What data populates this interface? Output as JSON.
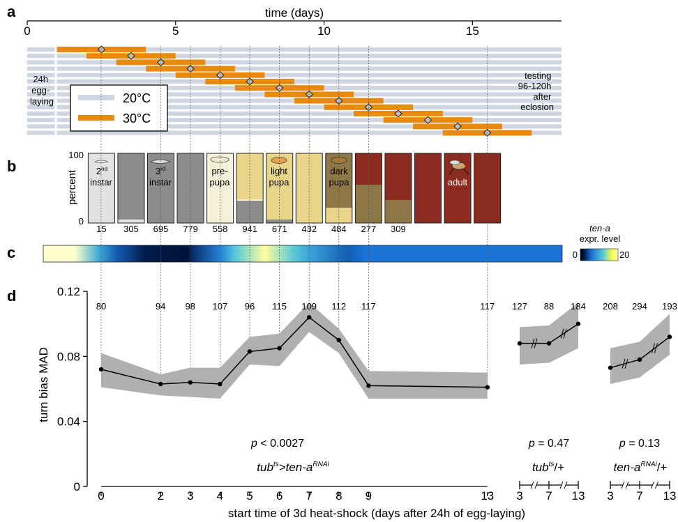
{
  "panels": {
    "a": "a",
    "b": "b",
    "c": "c",
    "d": "d"
  },
  "colors": {
    "lane": "#cfd6e2",
    "heat": "#e88a10",
    "stage_l2": "#e2e2e2",
    "stage_l3": "#8c8c8c",
    "stage_light": "#e9d58a",
    "stage_dark": "#8d7746",
    "stage_adult": "#8b2a1e",
    "ci_band": "#b0b0b0",
    "line": "#000000",
    "colormap": [
      "#ffffcc",
      "#ffff44",
      "#55c8d8",
      "#1a74d6",
      "#001a4a",
      "#000000"
    ]
  },
  "panel_a": {
    "title": "time (days)",
    "ticks": [
      0,
      5,
      10,
      15
    ],
    "x_max_days": 18,
    "egg_laying_label": [
      "24h",
      "egg-",
      "laying"
    ],
    "testing_label": [
      "testing",
      "96-120h",
      "after",
      "eclosion"
    ],
    "legend": [
      {
        "label": "20°C",
        "color": "#cfd6e2"
      },
      {
        "label": "30°C",
        "color": "#e88a10"
      }
    ],
    "heat_shocks": [
      {
        "start_day": 1,
        "end_day": 4
      },
      {
        "start_day": 2,
        "end_day": 5
      },
      {
        "start_day": 3,
        "end_day": 6
      },
      {
        "start_day": 4,
        "end_day": 7
      },
      {
        "start_day": 5,
        "end_day": 8
      },
      {
        "start_day": 6,
        "end_day": 9
      },
      {
        "start_day": 7,
        "end_day": 10
      },
      {
        "start_day": 8,
        "end_day": 11
      },
      {
        "start_day": 9,
        "end_day": 12
      },
      {
        "start_day": 10,
        "end_day": 13
      },
      {
        "start_day": 11,
        "end_day": 14
      },
      {
        "start_day": 12,
        "end_day": 15
      },
      {
        "start_day": 13,
        "end_day": 16
      },
      {
        "start_day": 14,
        "end_day": 17
      }
    ]
  },
  "panel_b": {
    "ylabel": "percent",
    "yticks": [
      "100",
      "0"
    ],
    "counts": [
      "15",
      "305",
      "695",
      "779",
      "558",
      "941",
      "671",
      "432",
      "484",
      "277",
      "309",
      "",
      "",
      ""
    ],
    "stage_labels": {
      "l2": "2nd instar",
      "l3": "3rd instar",
      "prepupa": "pre- pupa",
      "light": "light pupa",
      "dark": "dark pupa",
      "adult": "adult"
    },
    "composition_percent": [
      {
        "l2": 100,
        "l3": 0,
        "prepupa": 0,
        "light": 0,
        "dark": 0,
        "adult": 0
      },
      {
        "l2": 5,
        "l3": 95,
        "prepupa": 0,
        "light": 0,
        "dark": 0,
        "adult": 0
      },
      {
        "l2": 0,
        "l3": 100,
        "prepupa": 0,
        "light": 0,
        "dark": 0,
        "adult": 0
      },
      {
        "l2": 0,
        "l3": 100,
        "prepupa": 0,
        "light": 0,
        "dark": 0,
        "adult": 0
      },
      {
        "l2": 0,
        "l3": 0,
        "prepupa": 100,
        "light": 0,
        "dark": 0,
        "adult": 0
      },
      {
        "l2": 0,
        "l3": 32,
        "prepupa": 2,
        "light": 66,
        "dark": 0,
        "adult": 0
      },
      {
        "l2": 0,
        "l3": 5,
        "prepupa": 0,
        "light": 95,
        "dark": 0,
        "adult": 0
      },
      {
        "l2": 0,
        "l3": 0,
        "prepupa": 0,
        "light": 100,
        "dark": 0,
        "adult": 0
      },
      {
        "l2": 0,
        "l3": 0,
        "prepupa": 0,
        "light": 22,
        "dark": 78,
        "adult": 0
      },
      {
        "l2": 0,
        "l3": 0,
        "prepupa": 0,
        "light": 0,
        "dark": 55,
        "adult": 45
      },
      {
        "l2": 0,
        "l3": 0,
        "prepupa": 0,
        "light": 0,
        "dark": 33,
        "adult": 67
      },
      {
        "l2": 0,
        "l3": 0,
        "prepupa": 0,
        "light": 0,
        "dark": 0,
        "adult": 100
      },
      {
        "l2": 0,
        "l3": 0,
        "prepupa": 0,
        "light": 0,
        "dark": 0,
        "adult": 100
      },
      {
        "l2": 0,
        "l3": 0,
        "prepupa": 0,
        "light": 0,
        "dark": 0,
        "adult": 100
      }
    ]
  },
  "panel_c": {
    "label_gene": "ten-a",
    "label_rest": "expr. level",
    "scale_min": "0",
    "scale_max": "20",
    "profile_days": [
      1,
      1.6,
      2.4,
      3,
      4,
      5.4,
      5.6,
      6.5,
      7,
      8,
      9,
      9.6,
      10.8,
      11.4,
      12,
      13,
      15,
      17.5
    ],
    "profile_levels": [
      20,
      20,
      10,
      5,
      2,
      1.5,
      3,
      7,
      12,
      19,
      12,
      9,
      5,
      6,
      6,
      6,
      6,
      6
    ]
  },
  "chart_data": {
    "type": "line",
    "ylabel": "turn bias MAD",
    "xlabel": "start time of 3d heat-shock (days after 24h of egg-laying)",
    "yticks": [
      0,
      0.04,
      0.08,
      0.12
    ],
    "ylim": [
      0,
      0.12
    ],
    "groups": [
      {
        "name": "tub^ts>ten-a^RNAi",
        "name_parts": [
          "tub",
          "ts",
          ">ten-a",
          "RNAi"
        ],
        "pvalue": "p < 0.0027",
        "x": [
          0,
          2,
          3,
          4,
          5,
          6,
          7,
          8,
          9,
          13
        ],
        "y": [
          0.072,
          0.063,
          0.064,
          0.063,
          0.083,
          0.085,
          0.104,
          0.09,
          0.062,
          0.061
        ],
        "ci_low": [
          0.061,
          0.056,
          0.055,
          0.054,
          0.075,
          0.074,
          0.095,
          0.082,
          0.054,
          0.054
        ],
        "ci_high": [
          0.082,
          0.069,
          0.073,
          0.073,
          0.092,
          0.094,
          0.113,
          0.097,
          0.071,
          0.07
        ],
        "n": [
          "80",
          "94",
          "98",
          "107",
          "96",
          "115",
          "109",
          "112",
          "117",
          "117"
        ]
      },
      {
        "name": "tub^ts/+",
        "name_parts": [
          "tub",
          "ts",
          "/+"
        ],
        "pvalue": "p = 0.47",
        "x": [
          3,
          7,
          13
        ],
        "y": [
          0.088,
          0.088,
          0.1
        ],
        "ci_low": [
          0.075,
          0.076,
          0.085
        ],
        "ci_high": [
          0.098,
          0.099,
          0.113
        ],
        "n": [
          "127",
          "88",
          "184"
        ]
      },
      {
        "name": "ten-a^RNAi/+",
        "name_parts": [
          "ten-a",
          "RNAi",
          "/+"
        ],
        "pvalue": "p = 0.13",
        "x": [
          3,
          7,
          13
        ],
        "y": [
          0.073,
          0.078,
          0.092
        ],
        "ci_low": [
          0.063,
          0.067,
          0.081
        ],
        "ci_high": [
          0.085,
          0.089,
          0.106
        ],
        "n": [
          "208",
          "294",
          "193"
        ]
      }
    ],
    "main_xticks": [
      "0",
      "2",
      "3",
      "4",
      "5",
      "6",
      "7",
      "8",
      "9",
      "13"
    ],
    "control_xticks": [
      "3",
      "7",
      "13"
    ]
  }
}
